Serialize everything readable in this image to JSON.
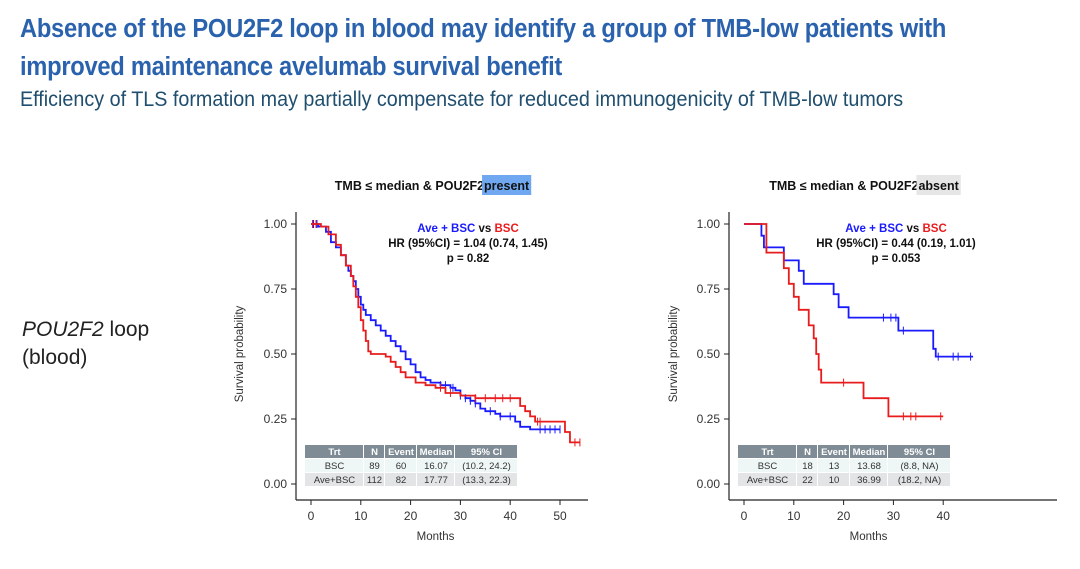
{
  "header": {
    "title_line1": "Absence of the POU2F2 loop in blood may identify a group of TMB-low patients with",
    "title_line2": "improved maintenance avelumab survival benefit",
    "subtitle": "Efficiency of TLS formation may partially compensate for reduced immunogenicity of TMB-low tumors"
  },
  "side_label": {
    "italic": "POU2F2",
    "rest": " loop",
    "line2": "(blood)"
  },
  "colors": {
    "ave_bsc": "#1a1aff",
    "bsc": "#e81c1c",
    "present_highlight": "#6fa8f0",
    "absent_highlight": "#e6e6e6",
    "table_header": "#7f8c95",
    "title": "#2a62ad"
  },
  "chart_data": [
    {
      "type": "line",
      "subtype": "kaplan-meier",
      "title_prefix": "TMB ≤ median & POU2F2 ",
      "title_highlight": "present",
      "xlabel": "Months",
      "ylabel": "Survival probability",
      "xlim": [
        0,
        55
      ],
      "ylim": [
        0,
        1
      ],
      "xticks": [
        0,
        10,
        20,
        30,
        40,
        50
      ],
      "yticks": [
        "0.00",
        "0.25",
        "0.50",
        "0.75",
        "1.00"
      ],
      "annotation": {
        "ave": "Ave + BSC",
        "vs": " vs ",
        "bsc": "BSC",
        "hr": "HR (95%CI) = 1.04 (0.74, 1.45)",
        "p": "p = 0.82"
      },
      "table": {
        "headers": [
          "Trt",
          "N",
          "Event",
          "Median",
          "95% CI"
        ],
        "rows": [
          [
            "BSC",
            "89",
            "60",
            "16.07",
            "(10.2, 24.2)"
          ],
          [
            "Ave+BSC",
            "112",
            "82",
            "17.77",
            "(13.3, 22.3)"
          ]
        ]
      },
      "series": [
        {
          "name": "Ave + BSC",
          "color": "#1a1aff",
          "steps": [
            [
              0,
              1.0
            ],
            [
              1.5,
              0.99
            ],
            [
              3,
              0.97
            ],
            [
              4,
              0.93
            ],
            [
              5,
              0.91
            ],
            [
              6,
              0.88
            ],
            [
              7,
              0.84
            ],
            [
              7.5,
              0.82
            ],
            [
              8,
              0.8
            ],
            [
              8.5,
              0.78
            ],
            [
              9,
              0.75
            ],
            [
              9.5,
              0.72
            ],
            [
              10,
              0.69
            ],
            [
              10.5,
              0.67
            ],
            [
              11,
              0.65
            ],
            [
              12,
              0.63
            ],
            [
              13,
              0.61
            ],
            [
              14,
              0.59
            ],
            [
              15,
              0.57
            ],
            [
              16,
              0.55
            ],
            [
              17,
              0.53
            ],
            [
              18,
              0.51
            ],
            [
              19,
              0.48
            ],
            [
              20,
              0.46
            ],
            [
              21,
              0.43
            ],
            [
              22,
              0.41
            ],
            [
              23,
              0.4
            ],
            [
              24,
              0.39
            ],
            [
              26,
              0.38
            ],
            [
              28,
              0.37
            ],
            [
              29,
              0.36
            ],
            [
              30,
              0.34
            ],
            [
              31,
              0.33
            ],
            [
              32,
              0.32
            ],
            [
              33,
              0.31
            ],
            [
              34,
              0.29
            ],
            [
              35,
              0.28
            ],
            [
              37,
              0.27
            ],
            [
              38,
              0.26
            ],
            [
              41,
              0.24
            ],
            [
              42,
              0.22
            ],
            [
              44,
              0.21
            ],
            [
              50,
              0.21
            ]
          ],
          "censor": [
            0.5,
            1.2,
            26,
            27,
            28.5,
            30,
            31,
            32,
            33,
            36,
            38,
            40,
            46,
            47,
            48,
            49,
            50
          ]
        },
        {
          "name": "BSC",
          "color": "#e81c1c",
          "steps": [
            [
              0,
              1.0
            ],
            [
              2,
              0.99
            ],
            [
              3.5,
              0.96
            ],
            [
              5,
              0.92
            ],
            [
              6,
              0.88
            ],
            [
              7,
              0.84
            ],
            [
              8,
              0.8
            ],
            [
              8.5,
              0.76
            ],
            [
              9,
              0.72
            ],
            [
              9.5,
              0.68
            ],
            [
              10,
              0.63
            ],
            [
              10.5,
              0.59
            ],
            [
              11,
              0.55
            ],
            [
              11.5,
              0.51
            ],
            [
              12,
              0.5
            ],
            [
              15,
              0.49
            ],
            [
              16,
              0.47
            ],
            [
              17,
              0.45
            ],
            [
              18,
              0.43
            ],
            [
              19,
              0.41
            ],
            [
              21,
              0.39
            ],
            [
              23,
              0.38
            ],
            [
              25,
              0.37
            ],
            [
              27,
              0.35
            ],
            [
              30,
              0.34
            ],
            [
              33,
              0.33
            ],
            [
              42,
              0.3
            ],
            [
              43,
              0.28
            ],
            [
              44,
              0.26
            ],
            [
              45,
              0.24
            ],
            [
              51,
              0.2
            ],
            [
              52,
              0.16
            ],
            [
              54,
              0.16
            ]
          ],
          "censor": [
            0.3,
            1,
            26,
            28,
            33,
            35,
            37,
            38.5,
            40,
            45.5,
            46,
            53,
            54
          ]
        }
      ]
    },
    {
      "type": "line",
      "subtype": "kaplan-meier",
      "title_prefix": "TMB ≤ median & POU2F2 ",
      "title_highlight": "absent",
      "xlabel": "Months",
      "ylabel": "Survival probability",
      "xlim": [
        0,
        55
      ],
      "ylim": [
        0,
        1
      ],
      "xticks": [
        0,
        10,
        20,
        30,
        40
      ],
      "yticks": [
        "0.00",
        "0.25",
        "0.50",
        "0.75",
        "1.00"
      ],
      "annotation": {
        "ave": "Ave + BSC",
        "vs": " vs ",
        "bsc": "BSC",
        "hr": "HR (95%CI) = 0.44 (0.19, 1.01)",
        "p": "p = 0.053"
      },
      "table": {
        "headers": [
          "Trt",
          "N",
          "Event",
          "Median",
          "95% CI"
        ],
        "rows": [
          [
            "BSC",
            "18",
            "13",
            "13.68",
            "(8.8, NA)"
          ],
          [
            "Ave+BSC",
            "22",
            "10",
            "36.99",
            "(18.2, NA)"
          ]
        ]
      },
      "series": [
        {
          "name": "Ave + BSC",
          "color": "#1a1aff",
          "steps": [
            [
              0,
              1.0
            ],
            [
              3.5,
              0.955
            ],
            [
              4,
              0.91
            ],
            [
              8,
              0.86
            ],
            [
              11,
              0.82
            ],
            [
              12,
              0.77
            ],
            [
              18,
              0.73
            ],
            [
              19,
              0.68
            ],
            [
              21,
              0.64
            ],
            [
              31,
              0.59
            ],
            [
              38,
              0.52
            ],
            [
              38.5,
              0.49
            ],
            [
              46,
              0.49
            ]
          ],
          "censor": [
            28,
            29.5,
            30.5,
            32,
            39,
            42,
            43,
            45.5
          ]
        },
        {
          "name": "BSC",
          "color": "#e81c1c",
          "steps": [
            [
              0,
              1.0
            ],
            [
              4.5,
              0.89
            ],
            [
              8,
              0.83
            ],
            [
              9,
              0.77
            ],
            [
              10,
              0.72
            ],
            [
              11,
              0.67
            ],
            [
              13,
              0.61
            ],
            [
              14,
              0.56
            ],
            [
              14.5,
              0.5
            ],
            [
              15,
              0.44
            ],
            [
              15.5,
              0.39
            ],
            [
              24,
              0.33
            ],
            [
              29,
              0.26
            ],
            [
              40,
              0.26
            ]
          ],
          "censor": [
            20,
            32,
            33.5,
            34.5,
            39.5
          ]
        }
      ]
    }
  ]
}
